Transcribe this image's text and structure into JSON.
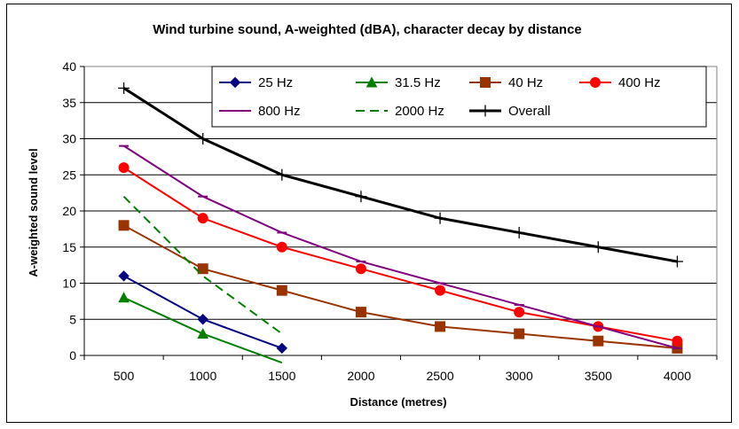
{
  "chart_data": {
    "type": "line",
    "title": "Wind turbine sound, A-weighted (dBA), character decay by distance",
    "xlabel": "Distance (metres)",
    "ylabel": "A-weighted sound level",
    "categories": [
      "500",
      "1000",
      "1500",
      "2000",
      "2500",
      "3000",
      "3500",
      "4000"
    ],
    "ylim": [
      0,
      40
    ],
    "yticks": [
      "0",
      "5",
      "10",
      "15",
      "20",
      "25",
      "30",
      "35",
      "40"
    ],
    "grid": "horizontal",
    "legend_position": "top-right",
    "series": [
      {
        "name": "25 Hz",
        "color": "#000080",
        "marker": "diamond",
        "dash": "solid",
        "values": [
          11,
          5,
          1,
          null,
          null,
          null,
          null,
          null
        ]
      },
      {
        "name": "31.5 Hz",
        "color": "#008000",
        "marker": "triangle",
        "dash": "solid",
        "values": [
          8,
          3,
          -1,
          null,
          null,
          null,
          null,
          null
        ]
      },
      {
        "name": "40 Hz",
        "color": "#993300",
        "marker": "square",
        "dash": "solid",
        "values": [
          18,
          12,
          9,
          6,
          4,
          3,
          2,
          1
        ]
      },
      {
        "name": "400 Hz",
        "color": "#ff0000",
        "marker": "circle",
        "dash": "solid",
        "values": [
          26,
          19,
          15,
          12,
          9,
          6,
          4,
          2
        ]
      },
      {
        "name": "800 Hz",
        "color": "#800080",
        "marker": "dash",
        "dash": "solid",
        "values": [
          29,
          22,
          17,
          13,
          10,
          7,
          4,
          1
        ]
      },
      {
        "name": "2000 Hz",
        "color": "#008000",
        "marker": "none",
        "dash": "dashed",
        "values": [
          22,
          11,
          3,
          null,
          null,
          null,
          null,
          null
        ]
      },
      {
        "name": "Overall",
        "color": "#000000",
        "marker": "plus",
        "dash": "solid",
        "values": [
          37,
          30,
          25,
          22,
          19,
          17,
          15,
          13
        ]
      }
    ]
  }
}
